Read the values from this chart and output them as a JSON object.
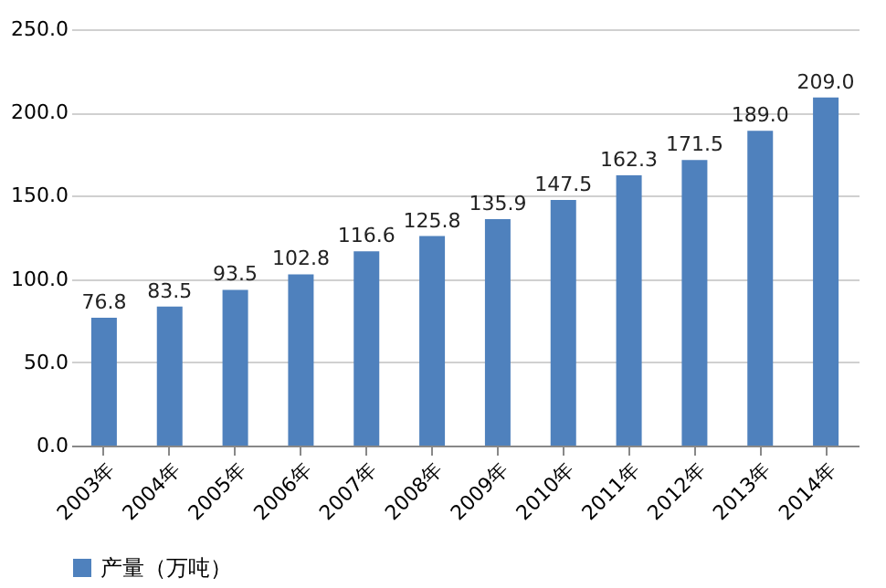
{
  "chart_data": {
    "type": "bar",
    "categories": [
      "2003年",
      "2004年",
      "2005年",
      "2006年",
      "2007年",
      "2008年",
      "2009年",
      "2010年",
      "2011年",
      "2012年",
      "2013年",
      "2014年"
    ],
    "series": [
      {
        "name": "产量（万吨）",
        "color": "#4f81bd",
        "values": [
          76.8,
          83.5,
          93.5,
          102.8,
          116.6,
          125.8,
          135.9,
          147.5,
          162.3,
          171.5,
          189.0,
          209.0
        ],
        "value_labels": [
          "76.8",
          "83.5",
          "93.5",
          "102.8",
          "116.6",
          "125.8",
          "135.9",
          "147.5",
          "162.3",
          "171.5",
          "189.0",
          "209.0"
        ]
      }
    ],
    "ylim": [
      0,
      250
    ],
    "yticks": [
      {
        "value": 0,
        "label": "0.0"
      },
      {
        "value": 50,
        "label": "50.0"
      },
      {
        "value": 100,
        "label": "100.0"
      },
      {
        "value": 150,
        "label": "150.0"
      },
      {
        "value": 200,
        "label": "200.0"
      },
      {
        "value": 250,
        "label": "250.0"
      }
    ],
    "grid": "y",
    "legend": "bottom"
  }
}
